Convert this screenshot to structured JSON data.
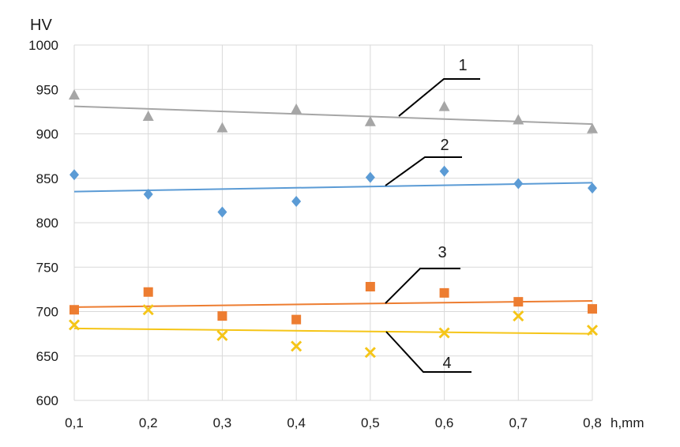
{
  "chart_data": {
    "type": "scatter",
    "title": "",
    "ylabel": "HV",
    "xlabel": "h,mm",
    "x": [
      0.1,
      0.2,
      0.3,
      0.4,
      0.5,
      0.6,
      0.7,
      0.8
    ],
    "x_tick_labels": [
      "0,1",
      "0,2",
      "0,3",
      "0,4",
      "0,5",
      "0,6",
      "0,7",
      "0,8"
    ],
    "y_ticks": [
      600,
      650,
      700,
      750,
      800,
      850,
      900,
      950,
      1000
    ],
    "y_tick_labels": [
      "600",
      "650",
      "700",
      "750",
      "800",
      "850",
      "900",
      "950",
      "1000"
    ],
    "xlim": [
      0.1,
      0.8
    ],
    "ylim": [
      600,
      1000
    ],
    "grid": true,
    "legend": "none",
    "series": [
      {
        "name": "1",
        "marker": "triangle",
        "color": "#a6a6a6",
        "values": [
          944,
          920,
          907,
          928,
          914,
          931,
          916,
          906
        ],
        "trend": [
          931,
          911
        ]
      },
      {
        "name": "2",
        "marker": "diamond",
        "color": "#5b9bd5",
        "values": [
          854,
          832,
          812,
          824,
          851,
          858,
          844,
          839
        ],
        "trend": [
          835,
          845
        ]
      },
      {
        "name": "3",
        "marker": "square",
        "color": "#ed7d31",
        "values": [
          702,
          722,
          695,
          691,
          728,
          721,
          711,
          703
        ],
        "trend": [
          705,
          712
        ]
      },
      {
        "name": "4",
        "marker": "x",
        "color": "#f5c518",
        "values": [
          685,
          702,
          673,
          661,
          654,
          676,
          695,
          679
        ],
        "trend": [
          681,
          675
        ]
      }
    ]
  }
}
